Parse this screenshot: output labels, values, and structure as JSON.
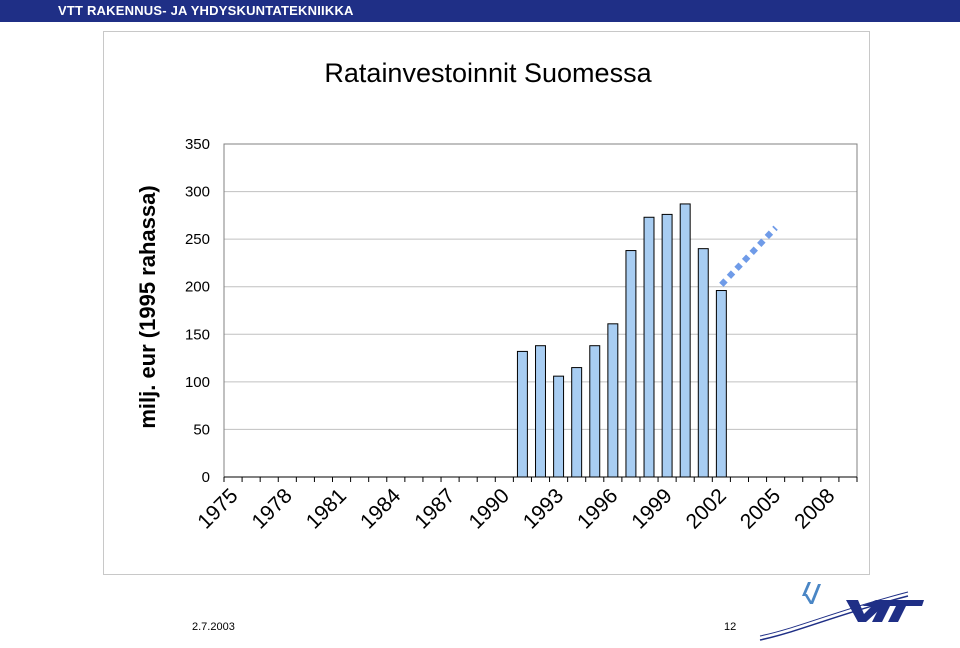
{
  "header": {
    "title": "VTT RAKENNUS- JA YHDYSKUNTATEKNIIKKA"
  },
  "footer": {
    "date": "2.7.2003",
    "page": "12"
  },
  "colors": {
    "header_bg": "#1f2f86",
    "bar_fill": "#a8cdf2",
    "forecast": "#6f9be8",
    "logo": "#1f2f86"
  },
  "chart_data": {
    "type": "bar",
    "title": "Ratainvestoinnit Suomessa",
    "ylabel": "milj. eur (1995 rahassa)",
    "ylim": [
      0,
      350
    ],
    "yticks": [
      "0",
      "50",
      "100",
      "150",
      "200",
      "250",
      "300",
      "350"
    ],
    "xticks": [
      "1975",
      "1978",
      "1981",
      "1984",
      "1987",
      "1990",
      "1993",
      "1996",
      "1999",
      "2002",
      "2005",
      "2008"
    ],
    "grid": true,
    "series": [
      {
        "x": [
          1975,
          1976,
          1977,
          1978,
          1979,
          1980,
          1981,
          1982,
          1983,
          1984,
          1985,
          1986,
          1987,
          1988,
          1989,
          1990,
          1991,
          1992,
          1993,
          1994,
          1995,
          1996,
          1997,
          1998,
          1999,
          2000,
          2001,
          2002,
          2003,
          2004,
          2005,
          2006,
          2007,
          2008,
          2009
        ],
        "values": [
          null,
          null,
          null,
          null,
          null,
          null,
          null,
          null,
          null,
          null,
          null,
          null,
          null,
          null,
          null,
          null,
          132,
          138,
          106,
          115,
          138,
          161,
          238,
          273,
          276,
          287,
          240,
          196,
          null,
          null,
          null,
          null,
          null,
          null,
          null
        ]
      }
    ],
    "forecast": {
      "style": "dotted",
      "x": [
        2002,
        2005
      ],
      "values": [
        202,
        262
      ]
    }
  }
}
